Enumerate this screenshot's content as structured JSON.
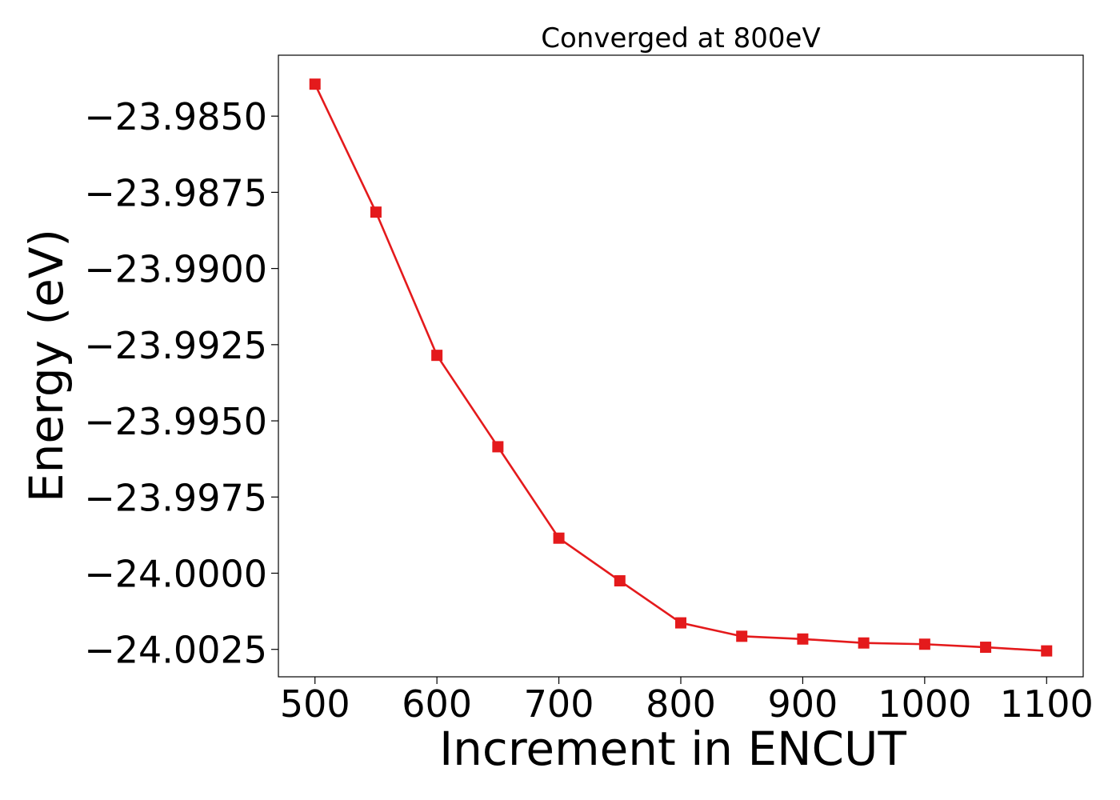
{
  "chart_data": {
    "type": "line",
    "title": "Converged at 800eV",
    "xlabel": "Increment in ENCUT",
    "ylabel": "Energy (eV)",
    "x": [
      500,
      550,
      600,
      650,
      700,
      750,
      800,
      850,
      900,
      950,
      1000,
      1050,
      1100
    ],
    "series": [
      {
        "values": [
          -23.98395,
          -23.98815,
          -23.99285,
          -23.99585,
          -23.99885,
          -24.00025,
          -24.00163,
          -24.00207,
          -24.00216,
          -24.00229,
          -24.00233,
          -24.00243,
          -24.00255
        ],
        "color": "#e41a1c",
        "marker": "square"
      }
    ],
    "xlim": [
      470,
      1130
    ],
    "ylim": [
      -24.0034,
      -23.983
    ],
    "xticks": [
      500,
      600,
      700,
      800,
      900,
      1000,
      1100
    ],
    "xtick_labels": [
      "500",
      "600",
      "700",
      "800",
      "900",
      "1000",
      "1100"
    ],
    "yticks": [
      -23.985,
      -23.9875,
      -23.99,
      -23.9925,
      -23.995,
      -23.9975,
      -24.0,
      -24.0025
    ],
    "ytick_labels": [
      "−23.9850",
      "−23.9875",
      "−23.9900",
      "−23.9925",
      "−23.9950",
      "−23.9975",
      "−24.0000",
      "−24.0025"
    ],
    "grid": false,
    "legend": false
  }
}
